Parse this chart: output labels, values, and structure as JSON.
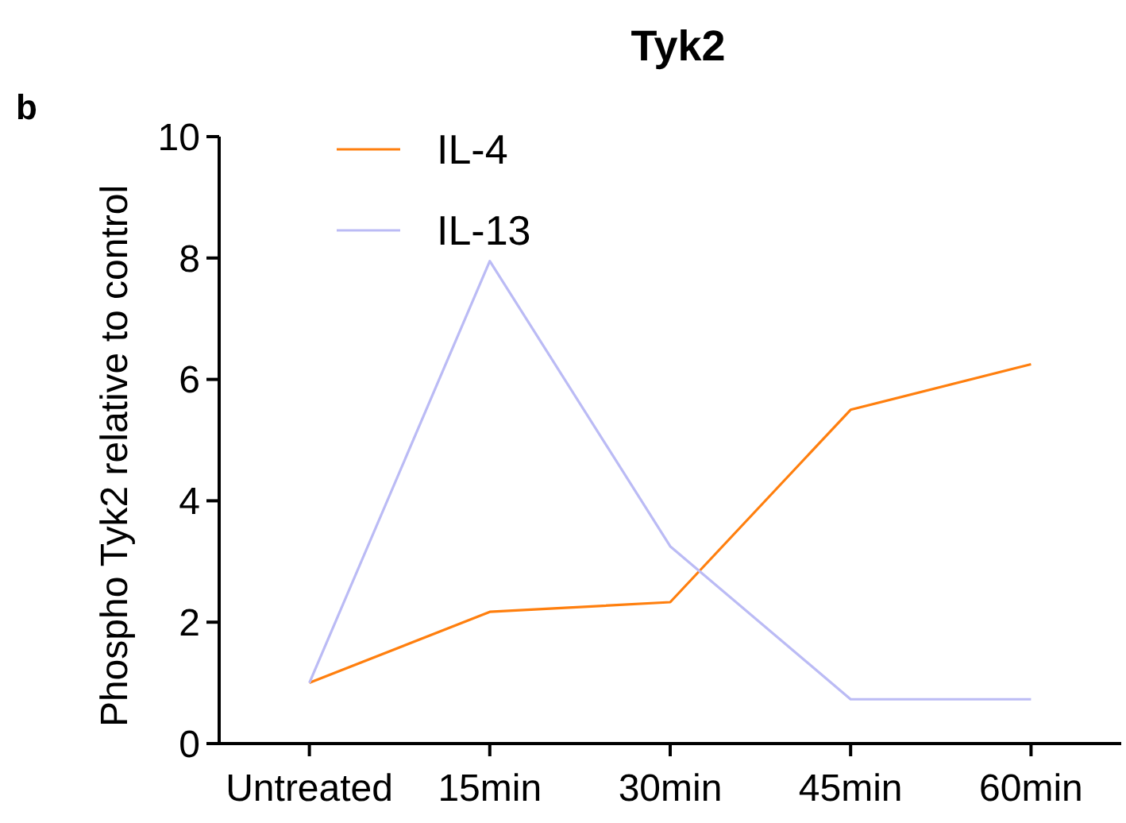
{
  "chart_data": {
    "type": "line",
    "title": "Tyk2",
    "ylabel": "Phospho Tyk2 relative to control",
    "annotations": [
      "b"
    ],
    "categories": [
      "Untreated",
      "15min",
      "30min",
      "45min",
      "60min"
    ],
    "series": [
      {
        "name": "IL-4",
        "color": "#ff7f0e",
        "values": [
          1.0,
          2.17,
          2.33,
          5.5,
          6.25
        ]
      },
      {
        "name": "IL-13",
        "color": "#bbbbf5",
        "values": [
          1.0,
          7.95,
          3.25,
          0.73,
          0.73
        ]
      }
    ],
    "ylim": [
      0,
      10
    ],
    "yticks": [
      0,
      2,
      4,
      6,
      8,
      10
    ],
    "grid": false,
    "legend": "top left",
    "marker": "none",
    "line_style": "solid"
  }
}
